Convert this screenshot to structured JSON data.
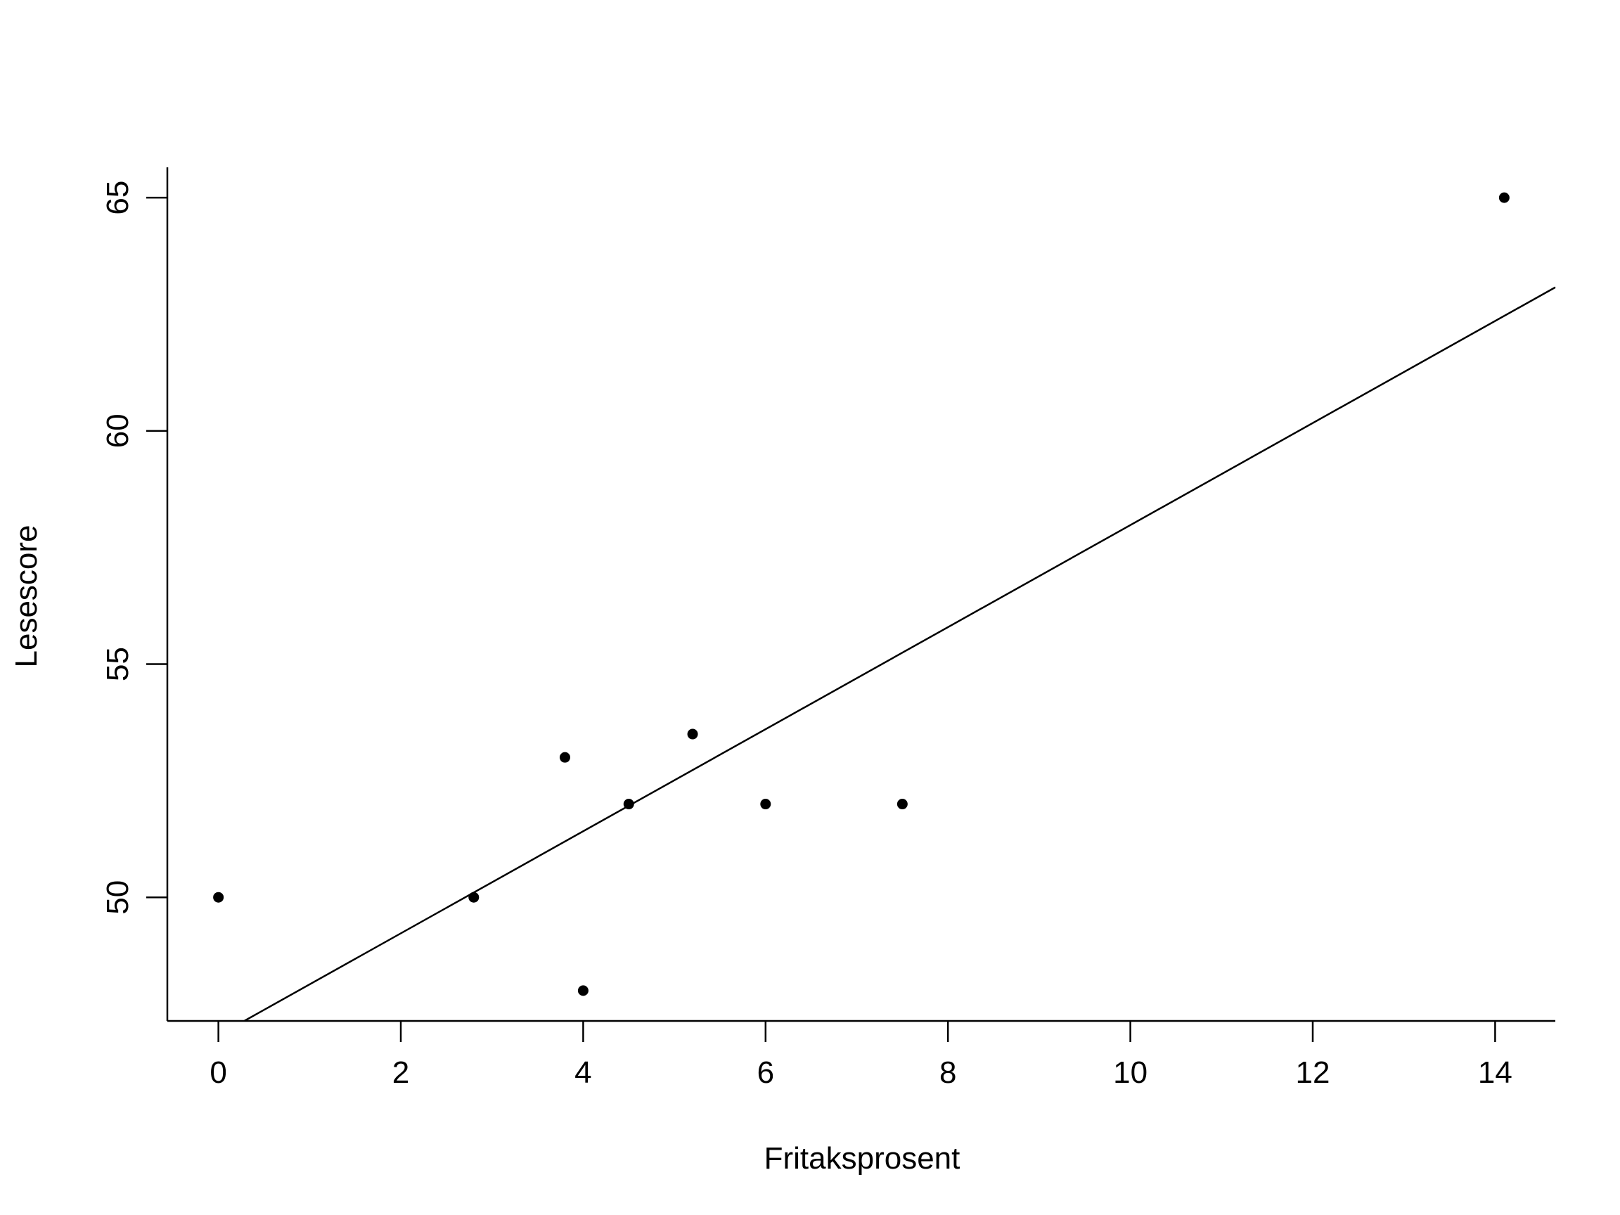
{
  "chart_data": {
    "type": "scatter",
    "title": "",
    "xlabel": "Fritaksprosent",
    "ylabel": "Lesescore",
    "xlim": [
      -0.56,
      14.66
    ],
    "ylim": [
      47.35,
      65.65
    ],
    "x_ticks": [
      0,
      2,
      4,
      6,
      8,
      10,
      12,
      14
    ],
    "y_ticks": [
      50,
      55,
      60,
      65
    ],
    "grid": false,
    "series": [
      {
        "name": "points",
        "points": [
          {
            "x": 0.0,
            "y": 50.0
          },
          {
            "x": 2.8,
            "y": 50.0
          },
          {
            "x": 3.8,
            "y": 53.0
          },
          {
            "x": 4.0,
            "y": 48.0
          },
          {
            "x": 4.5,
            "y": 52.0
          },
          {
            "x": 5.2,
            "y": 53.5
          },
          {
            "x": 6.0,
            "y": 52.0
          },
          {
            "x": 7.5,
            "y": 52.0
          },
          {
            "x": 14.1,
            "y": 65.0
          }
        ]
      }
    ],
    "regression_line": {
      "intercept": 47.04,
      "slope": 1.094
    },
    "colors": {
      "points": "#000000",
      "line": "#000000",
      "axes": "#000000"
    }
  }
}
